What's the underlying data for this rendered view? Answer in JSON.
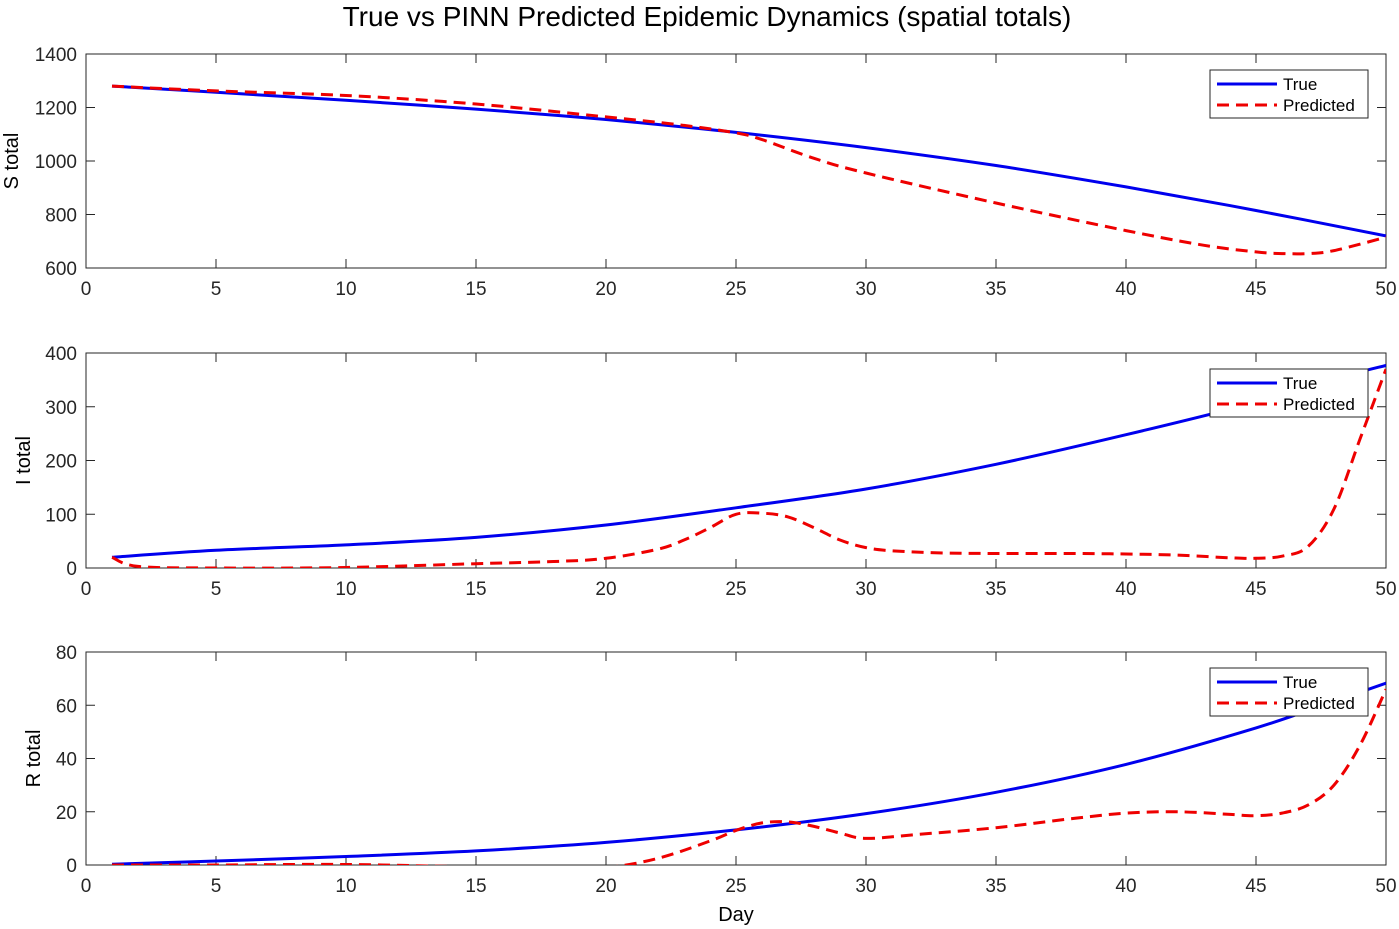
{
  "figure_title": "True vs PINN Predicted Epidemic Dynamics (spatial totals)",
  "colors": {
    "true": "#0000ee",
    "predicted": "#ee0000",
    "axis": "#262626"
  },
  "legend": {
    "true_label": "True",
    "predicted_label": "Predicted",
    "placement": "top-right"
  },
  "chart_data": [
    {
      "type": "line",
      "title": "True vs PINN Predicted Epidemic Dynamics (spatial totals)",
      "xlabel": "",
      "ylabel": "S total",
      "xlim": [
        0,
        50
      ],
      "ylim": [
        600,
        1400
      ],
      "xticks": [
        0,
        5,
        10,
        15,
        20,
        25,
        30,
        35,
        40,
        45,
        50
      ],
      "yticks": [
        600,
        800,
        1000,
        1200,
        1400
      ],
      "grid": false,
      "series": [
        {
          "name": "True",
          "style": "solid",
          "x": [
            1,
            5,
            10,
            15,
            20,
            25,
            30,
            35,
            40,
            45,
            50
          ],
          "y": [
            1280,
            1257,
            1227,
            1194,
            1155,
            1107,
            1050,
            983,
            903,
            815,
            720
          ]
        },
        {
          "name": "Predicted",
          "style": "dashed",
          "x": [
            1,
            5,
            10,
            15,
            20,
            23,
            25,
            26,
            28,
            30,
            35,
            40,
            43,
            45,
            46,
            47,
            48,
            50
          ],
          "y": [
            1280,
            1262,
            1245,
            1213,
            1165,
            1133,
            1105,
            1080,
            1010,
            955,
            843,
            740,
            685,
            660,
            654,
            654,
            665,
            715
          ]
        }
      ]
    },
    {
      "type": "line",
      "xlabel": "",
      "ylabel": "I total",
      "xlim": [
        0,
        50
      ],
      "ylim": [
        0,
        400
      ],
      "xticks": [
        0,
        5,
        10,
        15,
        20,
        25,
        30,
        35,
        40,
        45,
        50
      ],
      "yticks": [
        0,
        100,
        200,
        300,
        400
      ],
      "grid": false,
      "series": [
        {
          "name": "True",
          "style": "solid",
          "x": [
            1,
            5,
            10,
            15,
            20,
            25,
            30,
            35,
            40,
            45,
            48,
            50
          ],
          "y": [
            20,
            33,
            43,
            57,
            80,
            112,
            147,
            193,
            248,
            308,
            352,
            377
          ]
        },
        {
          "name": "Predicted",
          "style": "dashed",
          "x": [
            1,
            2,
            5,
            10,
            15,
            18,
            20,
            22,
            23,
            24,
            25,
            26,
            27,
            28,
            29,
            30,
            31,
            33,
            35,
            38,
            40,
            42,
            44,
            45,
            46,
            47,
            48,
            49,
            50
          ],
          "y": [
            20,
            3,
            0,
            1,
            8,
            12,
            18,
            35,
            52,
            75,
            100,
            102,
            95,
            75,
            52,
            38,
            32,
            28,
            27,
            27,
            26,
            24,
            19,
            18,
            22,
            40,
            110,
            240,
            370
          ]
        }
      ]
    },
    {
      "type": "line",
      "xlabel": "Day",
      "ylabel": "R total",
      "xlim": [
        0,
        50
      ],
      "ylim": [
        0,
        80
      ],
      "xticks": [
        0,
        5,
        10,
        15,
        20,
        25,
        30,
        35,
        40,
        45,
        50
      ],
      "yticks": [
        0,
        20,
        40,
        60,
        80
      ],
      "grid": false,
      "series": [
        {
          "name": "True",
          "style": "solid",
          "x": [
            1,
            5,
            10,
            15,
            20,
            25,
            30,
            35,
            40,
            45,
            48,
            50
          ],
          "y": [
            0.3,
            1.5,
            3.2,
            5.3,
            8.5,
            13.2,
            19.3,
            27.3,
            37.8,
            51.5,
            61.5,
            68.3
          ]
        },
        {
          "name": "Predicted",
          "style": "dashed",
          "x": [
            1,
            5,
            10,
            15,
            18,
            20,
            22,
            24,
            25,
            26,
            27,
            28,
            29,
            30,
            32,
            35,
            38,
            40,
            42,
            44,
            45,
            46,
            47,
            48,
            49,
            50
          ],
          "y": [
            0,
            0,
            0.2,
            -0.8,
            -1.5,
            -1,
            2.5,
            9,
            13,
            15.8,
            16.2,
            14.5,
            12,
            10,
            11.5,
            14,
            17.5,
            19.5,
            20,
            19,
            18.5,
            19.5,
            22.5,
            30,
            45,
            66
          ]
        }
      ]
    }
  ]
}
